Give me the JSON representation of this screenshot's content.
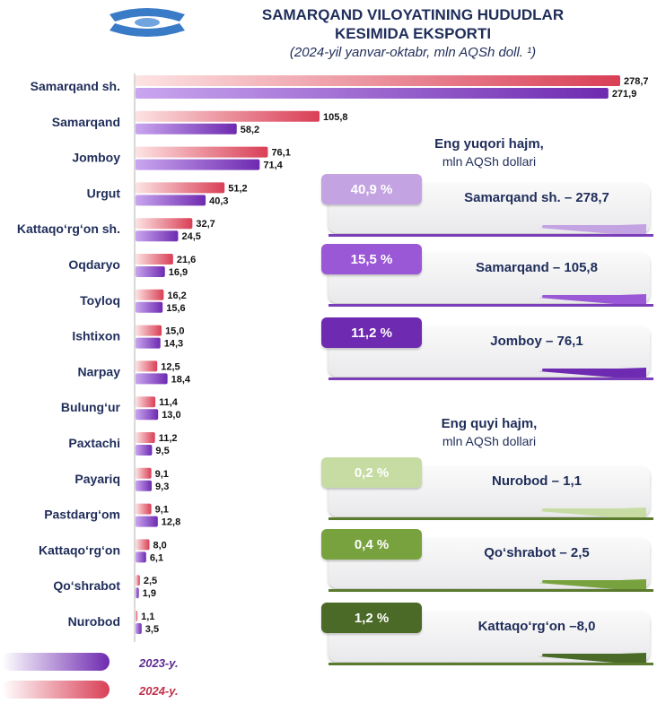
{
  "header": {
    "title_line1": "SAMARQAND VILOYATINING HUDUDLAR",
    "title_line2": "KESIMIDA EKSPORTI",
    "subtitle": "(2024-yil yanvar-oktabr, mln AQSh doll. ¹)"
  },
  "colors": {
    "bar_2024": "#d93f56",
    "bar_2023": "#7a3fb8",
    "top_badges": [
      "#c3a3e2",
      "#9a58d6",
      "#6e2ab0"
    ],
    "bottom_badges": [
      "#c6dca3",
      "#78a23e",
      "#4b6a28"
    ]
  },
  "chart_data": {
    "type": "bar",
    "orientation": "horizontal",
    "categories": [
      "Samarqand sh.",
      "Samarqand",
      "Jomboy",
      "Urgut",
      "Kattaqo‘rg‘on sh.",
      "Oqdaryo",
      "Toyloq",
      "Ishtixon",
      "Narpay",
      "Bulung‘ur",
      "Paxtachi",
      "Payariq",
      "Pastdarg‘om",
      "Kattaqo‘rg‘on",
      "Qo‘shrabot",
      "Nurobod"
    ],
    "series": [
      {
        "name": "2024-y.",
        "values": [
          278.7,
          105.8,
          76.1,
          51.2,
          32.7,
          21.6,
          16.2,
          15.0,
          12.5,
          11.4,
          11.2,
          9.1,
          9.1,
          8.0,
          2.5,
          1.1
        ],
        "labels": [
          "278,7",
          "105,8",
          "76,1",
          "51,2",
          "32,7",
          "21,6",
          "16,2",
          "15,0",
          "12,5",
          "11,4",
          "11,2",
          "9,1",
          "9,1",
          "8,0",
          "2,5",
          "1,1"
        ]
      },
      {
        "name": "2023-y.",
        "values": [
          271.9,
          58.2,
          71.4,
          40.3,
          24.5,
          16.9,
          15.6,
          14.3,
          18.4,
          13.0,
          9.5,
          9.3,
          12.8,
          6.1,
          1.9,
          3.5
        ],
        "labels": [
          "271,9",
          "58,2",
          "71,4",
          "40,3",
          "24,5",
          "16,9",
          "15,6",
          "14,3",
          "18,4",
          "13,0",
          "9,5",
          "9,3",
          "12,8",
          "6,1",
          "1,9",
          "3,5"
        ]
      }
    ],
    "xlim": [
      0,
      278.7
    ],
    "legend": {
      "position": "bottom-left",
      "order": [
        "2023-y.",
        "2024-y."
      ]
    }
  },
  "top_panel": {
    "heading": "Eng yuqori hajm,",
    "subheading": "mln AQSh dollari",
    "items": [
      {
        "percent": "40,9 %",
        "text": "Samarqand sh. – 278,7"
      },
      {
        "percent": "15,5 %",
        "text": "Samarqand – 105,8"
      },
      {
        "percent": "11,2 %",
        "text": "Jomboy – 76,1"
      }
    ]
  },
  "bottom_panel": {
    "heading": "Eng quyi hajm,",
    "subheading": "mln AQSh dollari",
    "items": [
      {
        "percent": "0,2 %",
        "text": "Nurobod – 1,1"
      },
      {
        "percent": "0,4 %",
        "text": "Qo‘shrabot – 2,5"
      },
      {
        "percent": "1,2 %",
        "text": "Kattaqo‘rg‘on –8,0"
      }
    ]
  }
}
